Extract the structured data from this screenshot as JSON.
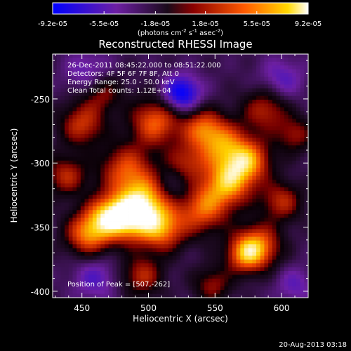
{
  "colorbar": {
    "tick_labels": [
      "-9.2e-05",
      "-5.5e-05",
      "-1.8e-05",
      "1.8e-05",
      "5.5e-05",
      "9.2e-05"
    ],
    "units_label": "(photons cm",
    "units_exp1": "-2",
    "units_mid": " s",
    "units_exp2": "-1",
    "units_mid2": " asec",
    "units_exp3": "-2",
    "units_end": ")",
    "min": -9.2e-05,
    "max": 9.2e-05
  },
  "annotations": {
    "line1": "26-Dec-2011 08:45:22.000 to 08:51:22.000",
    "line2": "Detectors: 4F 5F 6F 7F 8F, Att 0",
    "line3": "Energy Range: 25.0 - 50.0 keV",
    "line4": "Clean     Total counts: 1.12E+04",
    "peak": "Position of Peak = [507,-262]"
  },
  "footer_date": "20-Aug-2013 03:18",
  "chart_data": {
    "type": "heatmap",
    "title": "Reconstructed RHESSI Image",
    "xlabel": "Heliocentric X (arcsec)",
    "ylabel": "Heliocentric Y (arcsec)",
    "xlim": [
      428,
      620
    ],
    "ylim": [
      -405,
      -215
    ],
    "x_ticks": [
      450,
      500,
      550,
      600
    ],
    "y_ticks": [
      -250,
      -300,
      -350,
      -400
    ],
    "peak": [
      507,
      -262
    ],
    "colormap": "RHESSI blue-purple-black-red-yellow-white",
    "sources": [
      {
        "x": 483,
        "y": -305,
        "amp": 0.65,
        "sigma": 14
      },
      {
        "x": 505,
        "y": -268,
        "amp": 0.75,
        "sigma": 13
      },
      {
        "x": 498,
        "y": -330,
        "amp": 0.95,
        "sigma": 14
      },
      {
        "x": 485,
        "y": -345,
        "amp": 0.8,
        "sigma": 12
      },
      {
        "x": 510,
        "y": -352,
        "amp": 0.75,
        "sigma": 12
      },
      {
        "x": 540,
        "y": -335,
        "amp": 0.75,
        "sigma": 14
      },
      {
        "x": 560,
        "y": -315,
        "amp": 0.85,
        "sigma": 13
      },
      {
        "x": 555,
        "y": -285,
        "amp": 0.7,
        "sigma": 13
      },
      {
        "x": 575,
        "y": -298,
        "amp": 0.8,
        "sigma": 12
      },
      {
        "x": 540,
        "y": -272,
        "amp": 0.6,
        "sigma": 11
      },
      {
        "x": 450,
        "y": -270,
        "amp": 0.6,
        "sigma": 12
      },
      {
        "x": 438,
        "y": -310,
        "amp": 0.55,
        "sigma": 11
      },
      {
        "x": 455,
        "y": -355,
        "amp": 0.85,
        "sigma": 12
      },
      {
        "x": 470,
        "y": -340,
        "amp": 0.75,
        "sigma": 11
      },
      {
        "x": 582,
        "y": -365,
        "amp": 0.8,
        "sigma": 12
      },
      {
        "x": 600,
        "y": -330,
        "amp": 0.55,
        "sigma": 11
      },
      {
        "x": 528,
        "y": -300,
        "amp": 0.5,
        "sigma": 11
      },
      {
        "x": 572,
        "y": -372,
        "amp": 0.6,
        "sigma": 10
      },
      {
        "x": 495,
        "y": -388,
        "amp": 0.55,
        "sigma": 11
      },
      {
        "x": 548,
        "y": -395,
        "amp": 0.45,
        "sigma": 10
      },
      {
        "x": 465,
        "y": -245,
        "amp": 0.45,
        "sigma": 11
      },
      {
        "x": 588,
        "y": -258,
        "amp": 0.55,
        "sigma": 12
      },
      {
        "x": 610,
        "y": -278,
        "amp": 0.45,
        "sigma": 10
      },
      {
        "x": 525,
        "y": -246,
        "amp": -0.75,
        "sigma": 10
      },
      {
        "x": 455,
        "y": -230,
        "amp": -0.35,
        "sigma": 12
      },
      {
        "x": 600,
        "y": -235,
        "amp": -0.35,
        "sigma": 12
      },
      {
        "x": 520,
        "y": -320,
        "amp": -0.3,
        "sigma": 12
      },
      {
        "x": 460,
        "y": -390,
        "amp": -0.35,
        "sigma": 12
      },
      {
        "x": 610,
        "y": -395,
        "amp": -0.3,
        "sigma": 10
      }
    ]
  }
}
